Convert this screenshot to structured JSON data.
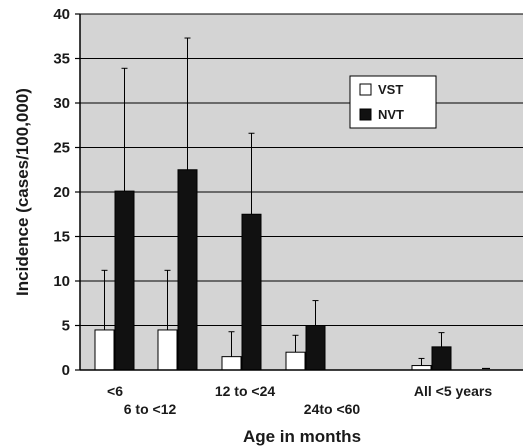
{
  "chart_data": {
    "type": "bar",
    "xlabel": "Age in months",
    "ylabel": "Incidence (cases/100,000)",
    "ylim": [
      0,
      40
    ],
    "yticks": [
      0,
      5,
      10,
      15,
      20,
      25,
      30,
      35,
      40
    ],
    "grid": true,
    "legend_position": "top-right",
    "categories": [
      "<6",
      "6 to <12",
      "12 to <24",
      "24to <60",
      "All <5 years"
    ],
    "series": [
      {
        "name": "VST",
        "color": "#ffffff",
        "values": [
          4.5,
          4.5,
          1.5,
          2.0,
          0.5
        ],
        "error_upper": [
          11.2,
          11.2,
          4.3,
          3.9,
          1.3
        ]
      },
      {
        "name": "NVT",
        "color": "#111111",
        "values": [
          20.1,
          22.5,
          17.5,
          5.0,
          2.6
        ],
        "error_upper": [
          33.9,
          37.3,
          26.6,
          7.8,
          4.2
        ]
      }
    ]
  }
}
